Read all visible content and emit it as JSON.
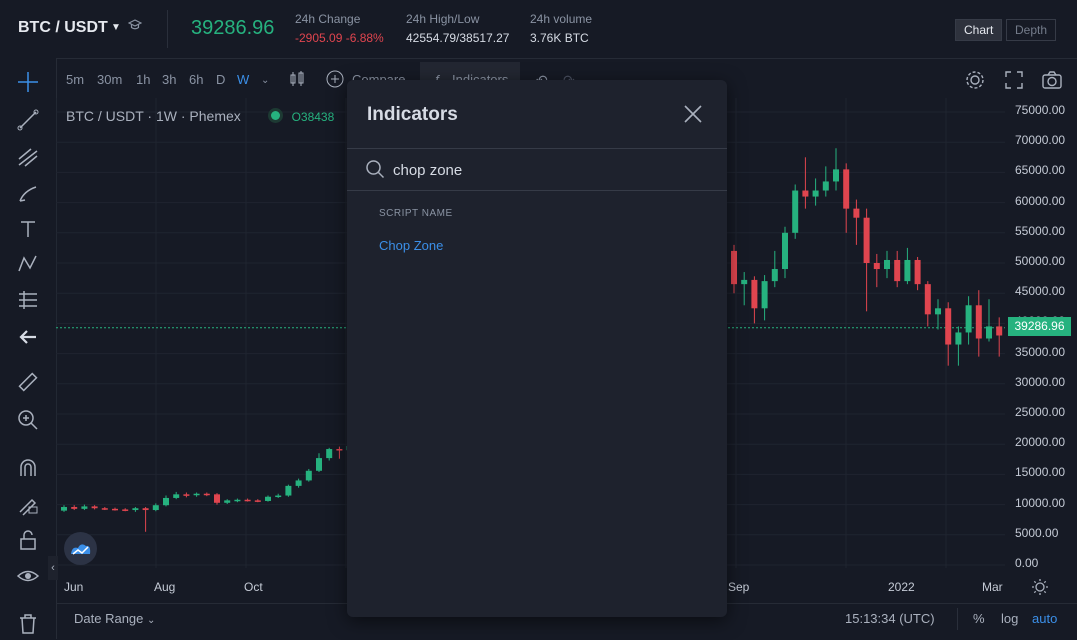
{
  "header": {
    "pair": "BTC / USDT",
    "price": "39286.96",
    "stats": [
      {
        "label": "24h Change",
        "value": "-2905.09 -6.88%"
      },
      {
        "label": "24h High/Low",
        "value": "42554.79/38517.27"
      },
      {
        "label": "24h volume",
        "value": "3.76K BTC"
      }
    ],
    "view_tabs": [
      "Chart",
      "Depth"
    ]
  },
  "toolbar": {
    "timeframes": [
      "5m",
      "30m",
      "1h",
      "3h",
      "6h",
      "D",
      "W"
    ],
    "active_timeframe": "W",
    "compare_label": "Compare",
    "indicators_label": "Indicators"
  },
  "chart": {
    "legend": "BTC / USDT · 1W · Phemex",
    "legend_open": "O38438",
    "last_price": "39286.96",
    "y_ticks": [
      "75000.00",
      "70000.00",
      "65000.00",
      "60000.00",
      "55000.00",
      "50000.00",
      "45000.00",
      "40000.00",
      "35000.00",
      "30000.00",
      "25000.00",
      "20000.00",
      "15000.00",
      "10000.00",
      "5000.00",
      "0.00"
    ],
    "x_ticks": [
      "Jun",
      "Aug",
      "Oct",
      "Sep",
      "2022",
      "Mar"
    ],
    "colors": {
      "up": "#26b27f",
      "down": "#e0454f",
      "accent": "#3b8fe8"
    }
  },
  "chart_data": {
    "type": "candlestick",
    "ylim": [
      0,
      75000
    ],
    "left_candles": [
      {
        "o": 9000,
        "c": 9600,
        "h": 9900,
        "l": 8800
      },
      {
        "o": 9600,
        "c": 9300,
        "h": 9900,
        "l": 9100
      },
      {
        "o": 9300,
        "c": 9700,
        "h": 10000,
        "l": 9100
      },
      {
        "o": 9700,
        "c": 9400,
        "h": 9900,
        "l": 9200
      },
      {
        "o": 9400,
        "c": 9300,
        "h": 9600,
        "l": 9100
      },
      {
        "o": 9300,
        "c": 9200,
        "h": 9500,
        "l": 9000
      },
      {
        "o": 9200,
        "c": 9100,
        "h": 9400,
        "l": 8900
      },
      {
        "o": 9100,
        "c": 9400,
        "h": 9600,
        "l": 8800
      },
      {
        "o": 9400,
        "c": 9100,
        "h": 9600,
        "l": 5500
      },
      {
        "o": 9100,
        "c": 9900,
        "h": 10200,
        "l": 8900
      },
      {
        "o": 9900,
        "c": 11100,
        "h": 11500,
        "l": 9700
      },
      {
        "o": 11100,
        "c": 11700,
        "h": 12100,
        "l": 10900
      },
      {
        "o": 11700,
        "c": 11600,
        "h": 12000,
        "l": 11200
      },
      {
        "o": 11600,
        "c": 11800,
        "h": 12000,
        "l": 11300
      },
      {
        "o": 11800,
        "c": 11700,
        "h": 12000,
        "l": 11400
      },
      {
        "o": 11700,
        "c": 10300,
        "h": 11900,
        "l": 10000
      },
      {
        "o": 10300,
        "c": 10700,
        "h": 10900,
        "l": 10100
      },
      {
        "o": 10700,
        "c": 10800,
        "h": 11000,
        "l": 10400
      },
      {
        "o": 10800,
        "c": 10700,
        "h": 11000,
        "l": 10500
      },
      {
        "o": 10700,
        "c": 10600,
        "h": 10900,
        "l": 10400
      },
      {
        "o": 10600,
        "c": 11300,
        "h": 11500,
        "l": 10500
      },
      {
        "o": 11300,
        "c": 11500,
        "h": 11800,
        "l": 11100
      },
      {
        "o": 11500,
        "c": 13100,
        "h": 13300,
        "l": 11300
      },
      {
        "o": 13100,
        "c": 14000,
        "h": 14300,
        "l": 12800
      },
      {
        "o": 14000,
        "c": 15600,
        "h": 15900,
        "l": 13800
      },
      {
        "o": 15600,
        "c": 17700,
        "h": 18500,
        "l": 15400
      },
      {
        "o": 17700,
        "c": 19200,
        "h": 19400,
        "l": 17300
      },
      {
        "o": 19200,
        "c": 19000,
        "h": 19600,
        "l": 17600
      },
      {
        "o": 19000,
        "c": 19700,
        "h": 19900,
        "l": 18600
      },
      {
        "o": 19700,
        "c": 19100,
        "h": 20000,
        "l": 18200
      }
    ],
    "right_candles": [
      {
        "o": 52000,
        "c": 46500,
        "h": 53000,
        "l": 45000
      },
      {
        "o": 46500,
        "c": 47200,
        "h": 48500,
        "l": 43000
      },
      {
        "o": 47200,
        "c": 42500,
        "h": 47800,
        "l": 40000
      },
      {
        "o": 42500,
        "c": 47000,
        "h": 48000,
        "l": 40500
      },
      {
        "o": 47000,
        "c": 49000,
        "h": 52000,
        "l": 46000
      },
      {
        "o": 49000,
        "c": 55000,
        "h": 56000,
        "l": 47500
      },
      {
        "o": 55000,
        "c": 62000,
        "h": 63000,
        "l": 54000
      },
      {
        "o": 62000,
        "c": 61000,
        "h": 67500,
        "l": 59000
      },
      {
        "o": 61000,
        "c": 62000,
        "h": 64000,
        "l": 59500
      },
      {
        "o": 62000,
        "c": 63500,
        "h": 66000,
        "l": 61000
      },
      {
        "o": 63500,
        "c": 65500,
        "h": 69000,
        "l": 62000
      },
      {
        "o": 65500,
        "c": 59000,
        "h": 66500,
        "l": 55000
      },
      {
        "o": 59000,
        "c": 57500,
        "h": 60500,
        "l": 53000
      },
      {
        "o": 57500,
        "c": 50000,
        "h": 59000,
        "l": 42000
      },
      {
        "o": 50000,
        "c": 49000,
        "h": 51500,
        "l": 46000
      },
      {
        "o": 49000,
        "c": 50500,
        "h": 52000,
        "l": 47500
      },
      {
        "o": 50500,
        "c": 47000,
        "h": 52000,
        "l": 46000
      },
      {
        "o": 47000,
        "c": 50500,
        "h": 52500,
        "l": 46500
      },
      {
        "o": 50500,
        "c": 46500,
        "h": 51000,
        "l": 45500
      },
      {
        "o": 46500,
        "c": 41500,
        "h": 47000,
        "l": 39500
      },
      {
        "o": 41500,
        "c": 42500,
        "h": 44000,
        "l": 39000
      },
      {
        "o": 42500,
        "c": 36500,
        "h": 43500,
        "l": 33000
      },
      {
        "o": 36500,
        "c": 38500,
        "h": 39500,
        "l": 33000
      },
      {
        "o": 38500,
        "c": 43000,
        "h": 44500,
        "l": 36500
      },
      {
        "o": 43000,
        "c": 37500,
        "h": 45500,
        "l": 34500
      },
      {
        "o": 37500,
        "c": 39500,
        "h": 44000,
        "l": 37000
      },
      {
        "o": 39500,
        "c": 38000,
        "h": 41000,
        "l": 34500
      },
      {
        "o": 38000,
        "c": 39000,
        "h": 45000,
        "l": 37000
      },
      {
        "o": 39000,
        "c": 39300,
        "h": 44000,
        "l": 37500
      }
    ]
  },
  "modal": {
    "title": "Indicators",
    "search_value": "chop zone",
    "section_header": "SCRIPT NAME",
    "result": "Chop Zone"
  },
  "bottom": {
    "date_range": "Date Range",
    "clock": "15:13:34 (UTC)",
    "pct": "%",
    "log": "log",
    "auto": "auto"
  }
}
